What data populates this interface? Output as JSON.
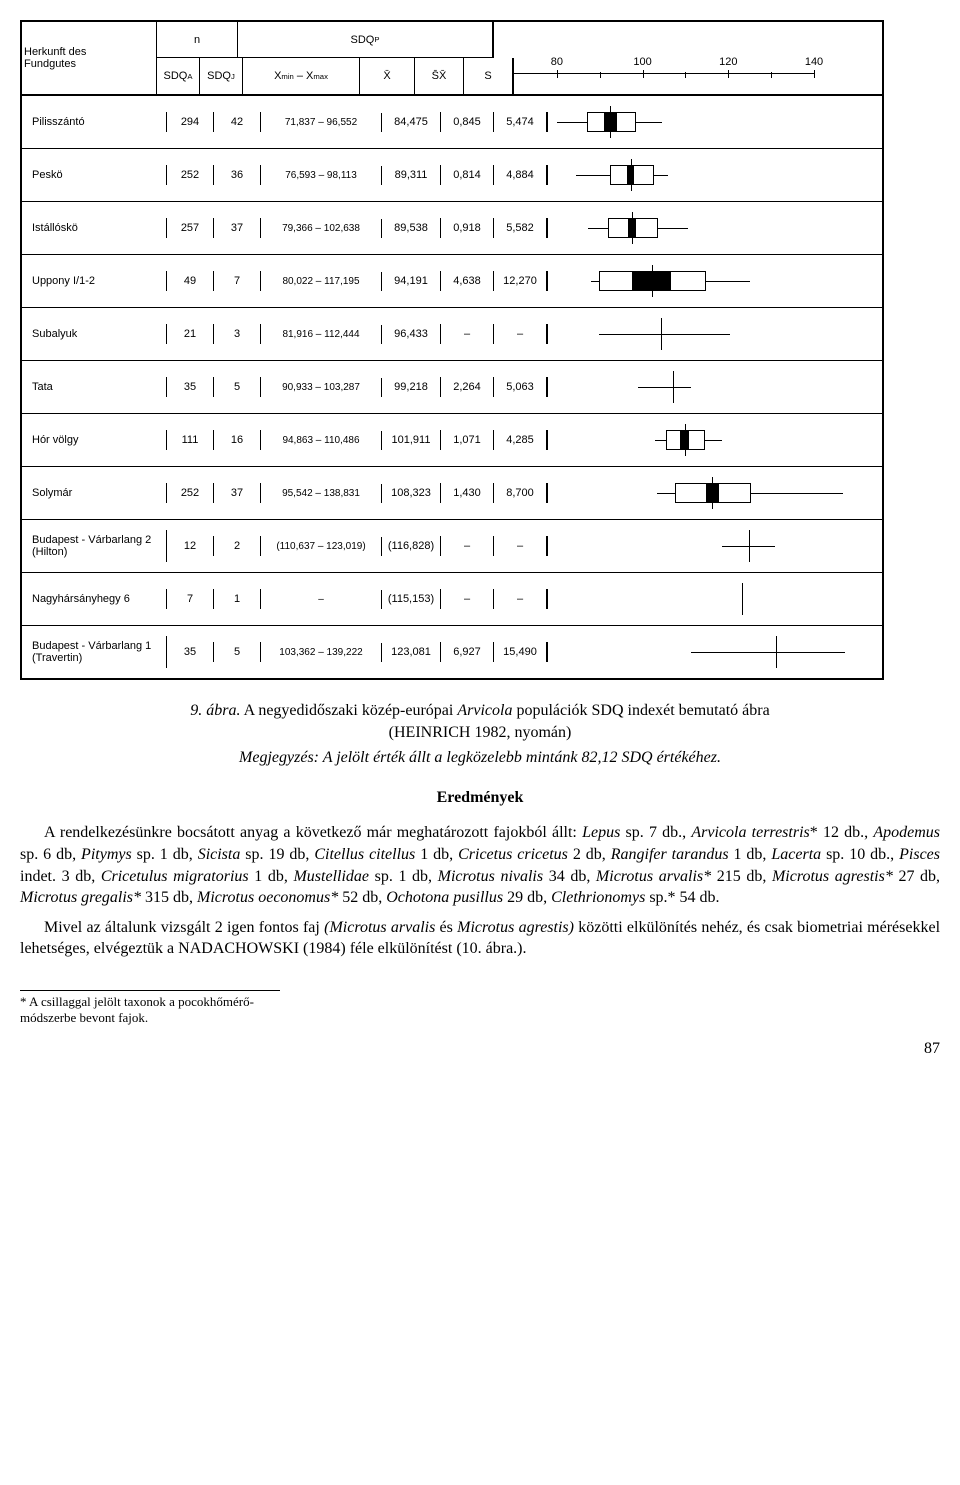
{
  "table": {
    "header": {
      "herkunft": "Herkunft des\nFundgutes",
      "n": "n",
      "sdqp": "SDQ",
      "sdqp_sub": "P",
      "sdqa": "SDQ",
      "sdqa_sub": "A",
      "sdqj": "SDQ",
      "sdqj_sub": "J",
      "xmin": "X",
      "xmin_sub": "min",
      "xmax": "X",
      "xmax_sub": "max",
      "xbar": "X̄",
      "sxbar": "S̄X̄",
      "s": "S"
    },
    "axis": {
      "min": 70,
      "max": 140,
      "ticks": [
        80,
        100,
        120,
        140
      ],
      "minor": [
        90,
        110,
        130
      ]
    },
    "rows": [
      {
        "label": "Pilisszántó",
        "sdqa": "294",
        "sdqj": "42",
        "range": "71,837 – 96,552",
        "xbar": "84,475",
        "sx": "0,845",
        "s": "5,474",
        "box": {
          "mean": 84.5,
          "whisk_lo": 72,
          "whisk_hi": 96.5,
          "outer_lo": 79,
          "outer_hi": 90,
          "inner_lo": 83,
          "inner_hi": 86
        }
      },
      {
        "label": "Peskö",
        "sdqa": "252",
        "sdqj": "36",
        "range": "76,593 – 98,113",
        "xbar": "89,311",
        "sx": "0,814",
        "s": "4,884",
        "box": {
          "mean": 89.3,
          "whisk_lo": 76.6,
          "whisk_hi": 98.1,
          "outer_lo": 84.4,
          "outer_hi": 94.2,
          "inner_lo": 88.5,
          "inner_hi": 90.1
        }
      },
      {
        "label": "Istállóskö",
        "sdqa": "257",
        "sdqj": "37",
        "range": "79,366 – 102,638",
        "xbar": "89,538",
        "sx": "0,918",
        "s": "5,582",
        "box": {
          "mean": 89.5,
          "whisk_lo": 79.4,
          "whisk_hi": 102.6,
          "outer_lo": 84,
          "outer_hi": 95.1,
          "inner_lo": 88.6,
          "inner_hi": 90.5
        }
      },
      {
        "label": "Uppony I/1-2",
        "sdqa": "49",
        "sdqj": "7",
        "range": "80,022 – 117,195",
        "xbar": "94,191",
        "sx": "4,638",
        "s": "12,270",
        "box": {
          "mean": 94.2,
          "whisk_lo": 80,
          "whisk_hi": 117.2,
          "outer_lo": 81.9,
          "outer_hi": 106.5,
          "inner_lo": 89.5,
          "inner_hi": 98.8
        }
      },
      {
        "label": "Subalyuk",
        "sdqa": "21",
        "sdqj": "3",
        "range": "81,916 – 112,444",
        "xbar": "96,433",
        "sx": "–",
        "s": "–",
        "box": {
          "mean": 96.4,
          "whisk_lo": 81.9,
          "whisk_hi": 112.4
        }
      },
      {
        "label": "Tata",
        "sdqa": "35",
        "sdqj": "5",
        "range": "90,933 – 103,287",
        "xbar": "99,218",
        "sx": "2,264",
        "s": "5,063",
        "box": {
          "mean": 99.2,
          "whisk_lo": 90.9,
          "whisk_hi": 103.3
        }
      },
      {
        "label": "Hór völgy",
        "sdqa": "111",
        "sdqj": "16",
        "range": "94,863 – 110,486",
        "xbar": "101,911",
        "sx": "1,071",
        "s": "4,285",
        "box": {
          "mean": 101.9,
          "whisk_lo": 94.9,
          "whisk_hi": 110.5,
          "outer_lo": 97.6,
          "outer_hi": 106.2,
          "inner_lo": 100.8,
          "inner_hi": 103
        }
      },
      {
        "label": "Solymár",
        "sdqa": "252",
        "sdqj": "37",
        "range": "95,542 – 138,831",
        "xbar": "108,323",
        "sx": "1,430",
        "s": "8,700",
        "box": {
          "mean": 108.3,
          "whisk_lo": 95.5,
          "whisk_hi": 138.8,
          "outer_lo": 99.6,
          "outer_hi": 117,
          "inner_lo": 106.9,
          "inner_hi": 109.8
        }
      },
      {
        "label": "Budapest - Várbarlang 2\n(Hilton)",
        "sdqa": "12",
        "sdqj": "2",
        "range": "(110,637 – 123,019)",
        "xbar": "(116,828)",
        "sx": "–",
        "s": "–",
        "box": {
          "mean": 116.8,
          "whisk_lo": 110.6,
          "whisk_hi": 123
        }
      },
      {
        "label": "Nagyhársányhegy 6",
        "sdqa": "7",
        "sdqj": "1",
        "range": "–",
        "xbar": "(115,153)",
        "sx": "–",
        "s": "–",
        "box": {
          "mean": 115.2,
          "whisk_lo": 115.2,
          "whisk_hi": 115.2
        }
      },
      {
        "label": "Budapest - Várbarlang 1\n(Travertin)",
        "sdqa": "35",
        "sdqj": "5",
        "range": "103,362 – 139,222",
        "xbar": "123,081",
        "sx": "6,927",
        "s": "15,490",
        "box": {
          "mean": 123.1,
          "whisk_lo": 103.4,
          "whisk_hi": 139.2
        }
      }
    ]
  },
  "caption": {
    "title_a": "9. ábra.",
    "title_b": " A negyedidőszaki közép-európai ",
    "title_c": "Arvicola",
    "title_d": " populációk SDQ indexét bemutató ábra",
    "title_e": "(HEINRICH 1982, nyomán)",
    "note": "Megjegyzés: A jelölt érték állt a legközelebb mintánk 82,12 SDQ értékéhez.",
    "heading": "Eredmények",
    "p1_a": "A rendelkezésünkre bocsátott anyag a következő már meghatározott fajokból állt: ",
    "p1_b": "Lepus",
    "p1_c": " sp. 7 db., ",
    "p1_d": "Arvicola terrestris",
    "p1_e": "* 12 db., ",
    "p1_f": "Apodemus",
    "p1_g": " sp. 6 db, ",
    "p1_h": "Pitymys",
    "p1_i": " sp. 1 db, ",
    "p1_j": "Sicista",
    "p1_k": " sp. 19 db, ",
    "p1_l": "Citellus citellus",
    "p1_m": " 1 db, ",
    "p1_n": "Cricetus cricetus",
    "p1_o": " 2 db, ",
    "p1_p": "Rangifer tarandus",
    "p1_q": " 1 db, ",
    "p1_r": "Lacerta",
    "p1_s": " sp. 10 db., ",
    "p1_t": "Pisces",
    "p1_u": " indet. 3 db, ",
    "p1_v": "Cricetulus migratorius",
    "p1_w": " 1 db, ",
    "p1_x": "Mustellidae",
    "p1_y": " sp. 1 db, ",
    "p1_z": "Microtus nivalis",
    "p1_aa": " 34 db, ",
    "p1_bb": "Microtus arvalis*",
    "p1_cc": " 215 db, ",
    "p1_dd": "Microtus agrestis*",
    "p1_ee": " 27 db, ",
    "p1_ff": "Microtus gregalis*",
    "p1_gg": " 315 db, ",
    "p1_hh": "Microtus oeconomus*",
    "p1_ii": " 52 db, ",
    "p1_jj": "Ochotona pusillus",
    "p1_kk": " 29 db, ",
    "p1_ll": "Clethrionomys",
    "p1_mm": " sp.* 54 db.",
    "p2_a": "Mivel az általunk vizsgált 2 igen fontos faj ",
    "p2_b": "(Microtus arvalis",
    "p2_c": " és ",
    "p2_d": "Microtus agrestis)",
    "p2_e": " közötti elkülönítés nehéz, és csak biometriai mérésekkel lehetséges, elvégeztük a NADACHOWSKI (1984) féle elkülönítést (10. ábra.).",
    "footnote": "* A csillaggal jelölt taxonok a pocokhőmérő-módszerbe bevont fajok.",
    "pagenum": "87"
  }
}
